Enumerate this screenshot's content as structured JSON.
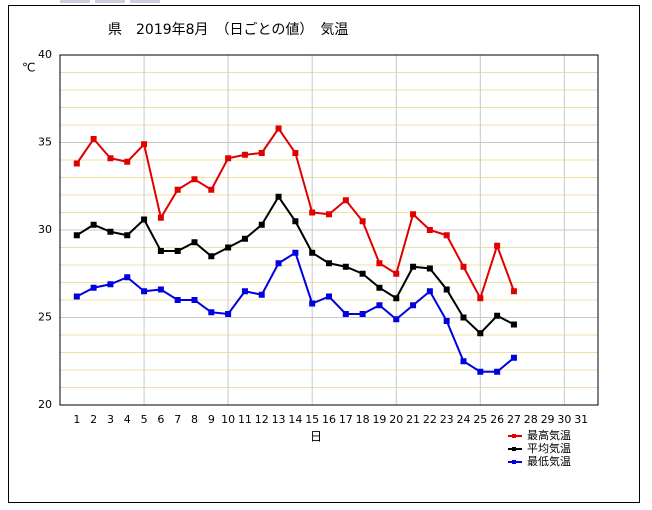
{
  "chart_data": {
    "type": "line",
    "title": "県　2019年8月　（日ごとの値）　気温",
    "y_label": "℃",
    "x_label": "日",
    "x": [
      1,
      2,
      3,
      4,
      5,
      6,
      7,
      8,
      9,
      10,
      11,
      12,
      13,
      14,
      15,
      16,
      17,
      18,
      19,
      20,
      21,
      22,
      23,
      24,
      25,
      26,
      27,
      28,
      29,
      30,
      31
    ],
    "xlim": [
      0,
      32
    ],
    "xticks": [
      1,
      2,
      3,
      4,
      5,
      6,
      7,
      8,
      9,
      10,
      11,
      12,
      13,
      14,
      15,
      16,
      17,
      18,
      19,
      20,
      21,
      22,
      23,
      24,
      25,
      26,
      27,
      28,
      29,
      30,
      31
    ],
    "xgrid": [
      5,
      10,
      15,
      20,
      25,
      30
    ],
    "ylim": [
      20,
      40
    ],
    "yticks": [
      20,
      25,
      30,
      35,
      40
    ],
    "yminor_grid": [
      21,
      22,
      23,
      24,
      26,
      27,
      28,
      29,
      31,
      32,
      33,
      34,
      36,
      37,
      38,
      39
    ],
    "grid": true,
    "legend": "lower right",
    "series": [
      {
        "name": "最高気温",
        "color": "#e00000",
        "values": [
          33.8,
          35.2,
          34.1,
          33.9,
          34.9,
          30.7,
          32.3,
          32.9,
          32.3,
          34.1,
          34.3,
          34.4,
          35.8,
          34.4,
          31.0,
          30.9,
          31.7,
          30.5,
          28.1,
          27.5,
          30.9,
          30.0,
          29.7,
          27.9,
          26.1,
          29.1,
          26.5,
          null,
          null,
          null,
          null
        ]
      },
      {
        "name": "平均気温",
        "color": "#000000",
        "values": [
          29.7,
          30.3,
          29.9,
          29.7,
          30.6,
          28.8,
          28.8,
          29.3,
          28.5,
          29.0,
          29.5,
          30.3,
          31.9,
          30.5,
          28.7,
          28.1,
          27.9,
          27.5,
          26.7,
          26.1,
          27.9,
          27.8,
          26.6,
          25.0,
          24.1,
          25.1,
          24.6,
          null,
          null,
          null,
          null
        ]
      },
      {
        "name": "最低気温",
        "color": "#0000e0",
        "values": [
          26.2,
          26.7,
          26.9,
          27.3,
          26.5,
          26.6,
          26.0,
          26.0,
          25.3,
          25.2,
          26.5,
          26.3,
          28.1,
          28.7,
          25.8,
          26.2,
          25.2,
          25.2,
          25.7,
          24.9,
          25.7,
          26.5,
          24.8,
          22.5,
          21.9,
          21.9,
          22.7,
          null,
          null,
          null,
          null
        ]
      }
    ]
  }
}
